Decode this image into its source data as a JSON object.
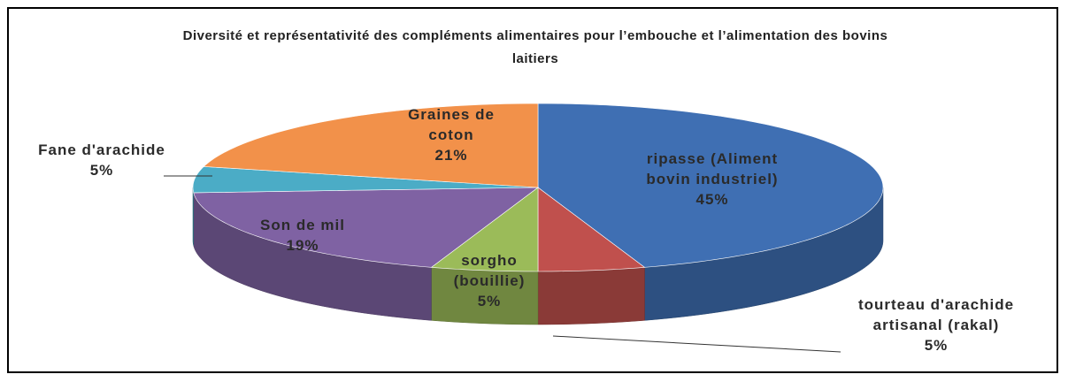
{
  "chart_data": {
    "type": "pie",
    "title": "Diversité et représentativité des compléments alimentaires pour l’embouche et l’alimentation des bovins laitiers",
    "categories": [
      "ripasse (Aliment bovin industriel)",
      "tourteau d'arachide artisanal (rakal)",
      "sorgho (bouillie)",
      "Son de mil",
      "Fane d'arachide",
      "Graines de coton"
    ],
    "values": [
      45,
      5,
      5,
      19,
      5,
      21
    ],
    "value_labels": [
      "45%",
      "5%",
      "5%",
      "19%",
      "5%",
      "21%"
    ],
    "colors": [
      "#3f6fb3",
      "#c0504d",
      "#9bbb59",
      "#7f62a3",
      "#4bacc6",
      "#f2914a"
    ]
  }
}
